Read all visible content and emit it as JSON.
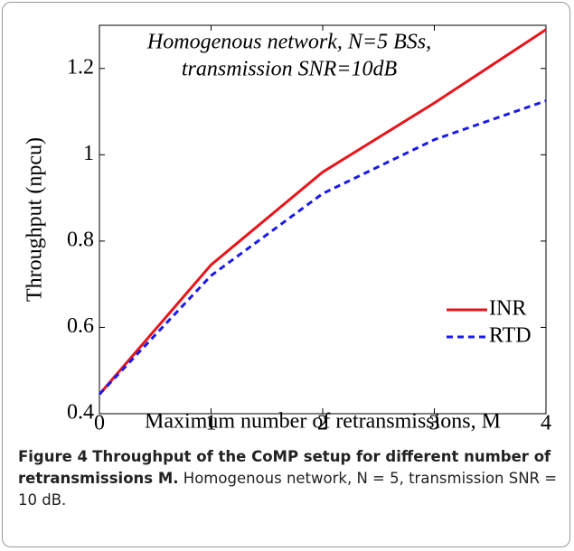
{
  "chart_data": {
    "type": "line",
    "annotation": [
      "Homogenous network, N=5 BSs,",
      "transmission SNR=10dB"
    ],
    "x_label": "Maximum number of retransmissions, M",
    "y_label": "Throughput (npcu)",
    "x": [
      0,
      1,
      2,
      3,
      4
    ],
    "series": [
      {
        "name": "INR",
        "color": "#e8141c",
        "line_style": "solid",
        "values": [
          0.445,
          0.745,
          0.96,
          1.12,
          1.29
        ]
      },
      {
        "name": "RTD",
        "color": "#1a1aee",
        "line_style": "dashed",
        "values": [
          0.445,
          0.72,
          0.91,
          1.035,
          1.125
        ]
      }
    ],
    "xlim": [
      0,
      4
    ],
    "xticks": [
      0,
      1,
      2,
      3,
      4
    ],
    "ylim": [
      0.4,
      1.3
    ],
    "yticks": [
      0.4,
      0.6,
      0.8,
      1,
      1.2
    ],
    "legend": "lower right"
  },
  "caption": {
    "label": "Figure 4",
    "title": "Throughput of the CoMP setup for different number of retransmissions M.",
    "text": "Homogenous network, N = 5, transmission SNR = 10 dB."
  }
}
